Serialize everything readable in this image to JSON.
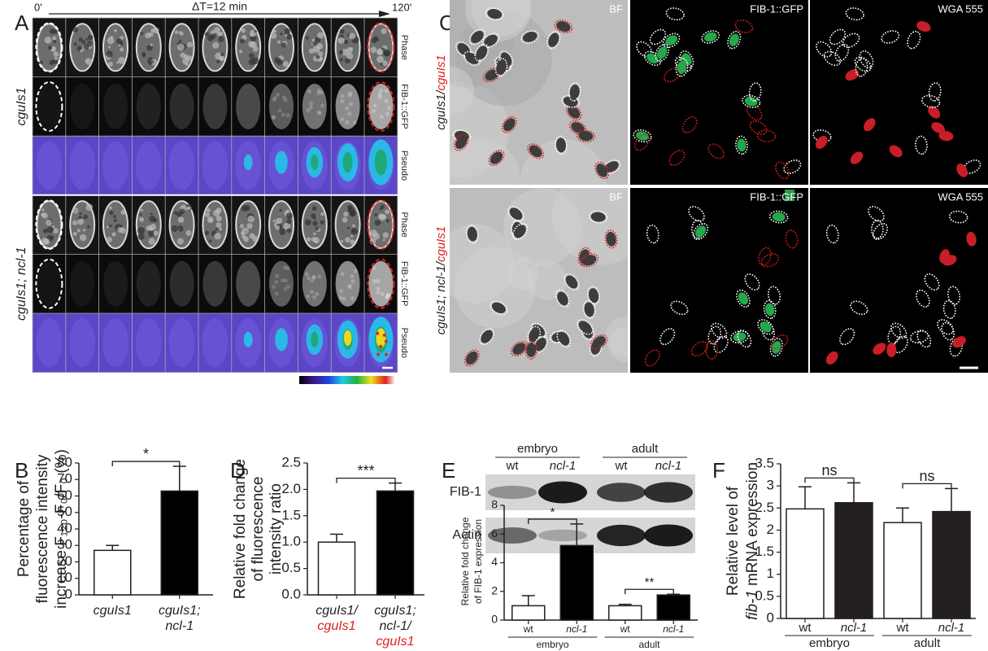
{
  "panel_labels": [
    "A",
    "B",
    "C",
    "D",
    "E",
    "F"
  ],
  "panel_a": {
    "time_start": "0'",
    "interval": "ΔT=12 min",
    "time_end": "120'",
    "row_labels": [
      "Phase",
      "FIB-1::GFP",
      "Pseudo",
      "Phase",
      "FIB-1::GFP",
      "Pseudo"
    ],
    "strain_labels": [
      "cguIs1",
      "cguIs1; ncl-1"
    ]
  },
  "panel_c": {
    "channel_labels": [
      "BF",
      "FIB-1::GFP",
      "WGA 555"
    ],
    "strain_labels": [
      [
        "cguIs1/",
        "cguIs1"
      ],
      [
        "cguIs1; ncl-1/",
        "cguIs1"
      ]
    ]
  },
  "panel_e_blot": {
    "groups": [
      "embryo",
      "adult"
    ],
    "lanes": [
      "wt",
      "ncl-1",
      "wt",
      "ncl-1"
    ],
    "bands": [
      "FIB-1",
      "Actin"
    ]
  },
  "chart_data": [
    {
      "type": "bar",
      "categories": [
        [
          "cguIs1"
        ],
        [
          "cguIs1;",
          "ncl-1"
        ]
      ],
      "values": [
        27,
        63
      ],
      "errors": [
        3,
        15
      ],
      "colors": [
        "#ffffff",
        "#000000"
      ],
      "ylim": [
        0,
        80
      ],
      "yticks": [
        0,
        10,
        20,
        30,
        40,
        50,
        60,
        70,
        80
      ],
      "y_label": [
        "Percentage of",
        "fluorescence intensity",
        "increase F₁₂₀-F₀/F₀ (%)"
      ],
      "significance": [
        {
          "label": "*",
          "pair": [
            0,
            1
          ]
        }
      ]
    },
    {
      "type": "bar",
      "categories": [
        [
          "cguIs1/",
          "cguIs1"
        ],
        [
          "cguIs1;",
          "ncl-1/",
          "cguIs1"
        ]
      ],
      "values": [
        1.0,
        1.97
      ],
      "errors": [
        0.15,
        0.15
      ],
      "colors": [
        "#ffffff",
        "#000000"
      ],
      "ylim": [
        0,
        2.5
      ],
      "yticks": [
        {
          "value": 0,
          "label": "0.0"
        },
        {
          "value": 0.5,
          "label": "0.5"
        },
        {
          "value": 1,
          "label": "1.0"
        },
        {
          "value": 1.5,
          "label": "1.5"
        },
        {
          "value": 2,
          "label": "2.0"
        },
        {
          "value": 2.5,
          "label": "2.5"
        }
      ],
      "y_label": [
        "Relative fold change",
        "of fluorescence",
        "intensity ratio"
      ],
      "significance": [
        {
          "label": "***",
          "pair": [
            0,
            1
          ]
        }
      ]
    },
    {
      "type": "bar",
      "categories": [
        "wt",
        "ncl-1",
        "wt",
        "ncl-1"
      ],
      "groups": [
        "embryo",
        "adult"
      ],
      "values": [
        1.0,
        5.2,
        1.0,
        1.75
      ],
      "errors": [
        0.7,
        1.5,
        0.1,
        0.05
      ],
      "colors": [
        "#ffffff",
        "#000000",
        "#ffffff",
        "#000000"
      ],
      "ylim": [
        0,
        8
      ],
      "yticks": [
        0,
        2,
        4,
        6,
        8
      ],
      "y_label": [
        "Relative fold change",
        "of FIB-1 expression"
      ],
      "significance": [
        {
          "label": "*",
          "pair": [
            0,
            1
          ]
        },
        {
          "label": "**",
          "pair": [
            2,
            3
          ]
        }
      ]
    },
    {
      "type": "bar",
      "categories": [
        "wt",
        "ncl-1",
        "wt",
        "ncl-1"
      ],
      "groups": [
        "embryo",
        "adult"
      ],
      "values": [
        2.48,
        2.62,
        2.17,
        2.42
      ],
      "errors": [
        0.5,
        0.45,
        0.33,
        0.52
      ],
      "colors": [
        "#ffffff",
        "#231f20",
        "#ffffff",
        "#231f20"
      ],
      "ylim": [
        0,
        3.5
      ],
      "yticks": [
        0,
        0.5,
        1,
        1.5,
        2,
        2.5,
        3,
        3.5
      ],
      "y_label": [
        "Relative level of",
        [
          "fib-1",
          "mRNA expression"
        ]
      ],
      "significance": [
        {
          "label": "ns",
          "pair": [
            0,
            1
          ]
        },
        {
          "label": "ns",
          "pair": [
            2,
            3
          ]
        }
      ]
    }
  ]
}
